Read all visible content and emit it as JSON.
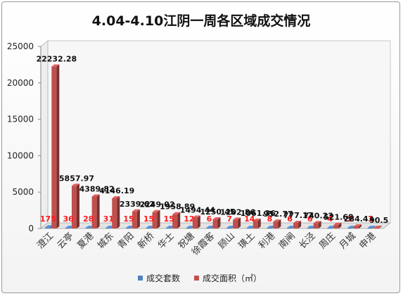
{
  "chart_data": {
    "type": "bar",
    "title": "4.04-4.10江阴一周各区域成交情况",
    "xlabel": "",
    "ylabel": "",
    "ylim": [
      0,
      25000
    ],
    "yticks": [
      "0",
      "5000",
      "10000",
      "15000",
      "20000",
      "25000"
    ],
    "categories": [
      "澄江",
      "云亭",
      "夏港",
      "城东",
      "青阳",
      "新桥",
      "华士",
      "祝塘",
      "徐霞客",
      "顾山",
      "璜土",
      "利港",
      "南闸",
      "长泾",
      "周庄",
      "月城",
      "申港"
    ],
    "series": [
      {
        "name": "成交套数",
        "color": "#4f81bd",
        "values": [
          175,
          36,
          28,
          31,
          15,
          15,
          15,
          12,
          6,
          7,
          14,
          8,
          6,
          6,
          4,
          2,
          1
        ],
        "labels": [
          "175",
          "36",
          "28",
          "31",
          "15",
          "15",
          "15",
          "12",
          "6",
          "7",
          "14",
          "8",
          "6",
          "6",
          "4",
          "2",
          "1"
        ]
      },
      {
        "name": "成交面积（㎡）",
        "color": "#c0504d",
        "values": [
          22232.28,
          5857.97,
          4389.82,
          4146.19,
          2339.62,
          2249.02,
          1958.89,
          1494.44,
          1250.45,
          1202.86,
          1061.36,
          952.77,
          777.17,
          740.23,
          521.68,
          284.43,
          90.5
        ],
        "labels": [
          "22232.28",
          "5857.97",
          "4389.82",
          "4146.19",
          "2339.62",
          "2249.02",
          "1958.89",
          "1494.44",
          "1250.45",
          "1202.86",
          "1061.36",
          "952.77",
          "777.17",
          "740.23",
          "521.68",
          "284.43",
          "90.5"
        ]
      }
    ],
    "legend_position": "bottom",
    "grid": false,
    "style": "3d-column"
  }
}
